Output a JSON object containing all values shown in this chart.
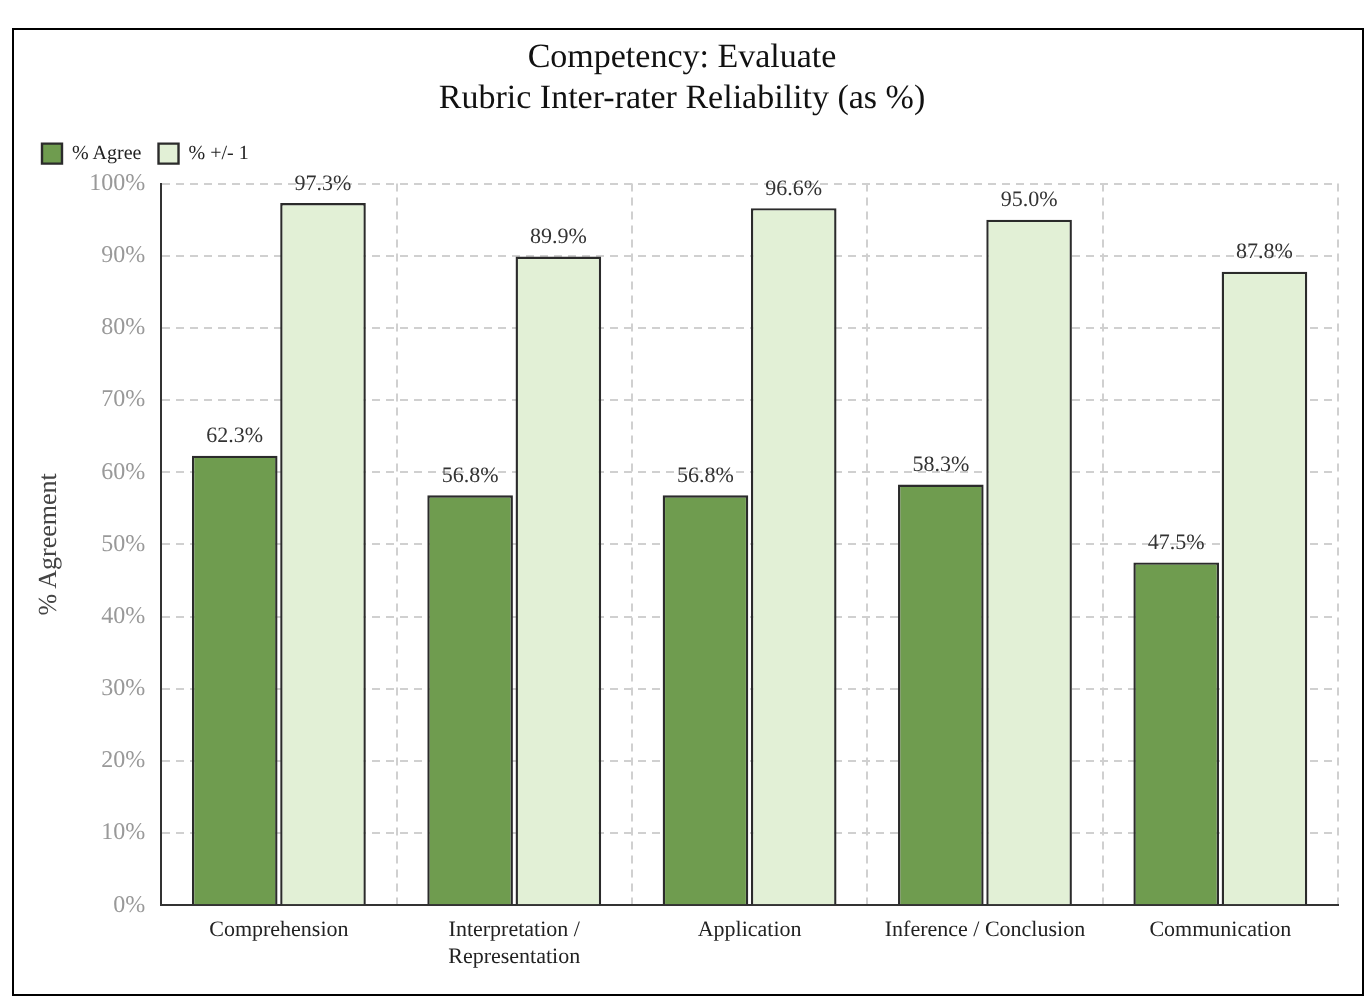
{
  "chart_data": {
    "type": "bar",
    "title": "Competency: Evaluate\nRubric Inter-rater Reliability (as %)",
    "ylabel": "% Agreement",
    "categories": [
      "Comprehension",
      "Interpretation / Representation",
      "Application",
      "Inference / Conclusion",
      "Communication"
    ],
    "series": [
      {
        "name": "% Agree",
        "color": "#6f9c4f",
        "values": [
          62.3,
          56.8,
          56.8,
          58.3,
          47.5
        ],
        "value_labels": [
          "62.3%",
          "56.8%",
          "56.8%",
          "58.3%",
          "47.5%"
        ]
      },
      {
        "name": "% +/- 1",
        "color": "#e2f0d6",
        "values": [
          97.3,
          89.9,
          96.6,
          95.0,
          87.8
        ],
        "value_labels": [
          "97.3%",
          "89.9%",
          "96.6%",
          "95.0%",
          "87.8%"
        ]
      }
    ],
    "ylim": [
      0,
      100
    ],
    "yticks": [
      {
        "value": 0,
        "label": "0%"
      },
      {
        "value": 10,
        "label": "10%"
      },
      {
        "value": 20,
        "label": "20%"
      },
      {
        "value": 30,
        "label": "30%"
      },
      {
        "value": 40,
        "label": "40%"
      },
      {
        "value": 50,
        "label": "50%"
      },
      {
        "value": 60,
        "label": "60%"
      },
      {
        "value": 70,
        "label": "70%"
      },
      {
        "value": 80,
        "label": "80%"
      },
      {
        "value": 90,
        "label": "90%"
      },
      {
        "value": 100,
        "label": "100%"
      }
    ],
    "grid": true,
    "legend": "top left"
  }
}
